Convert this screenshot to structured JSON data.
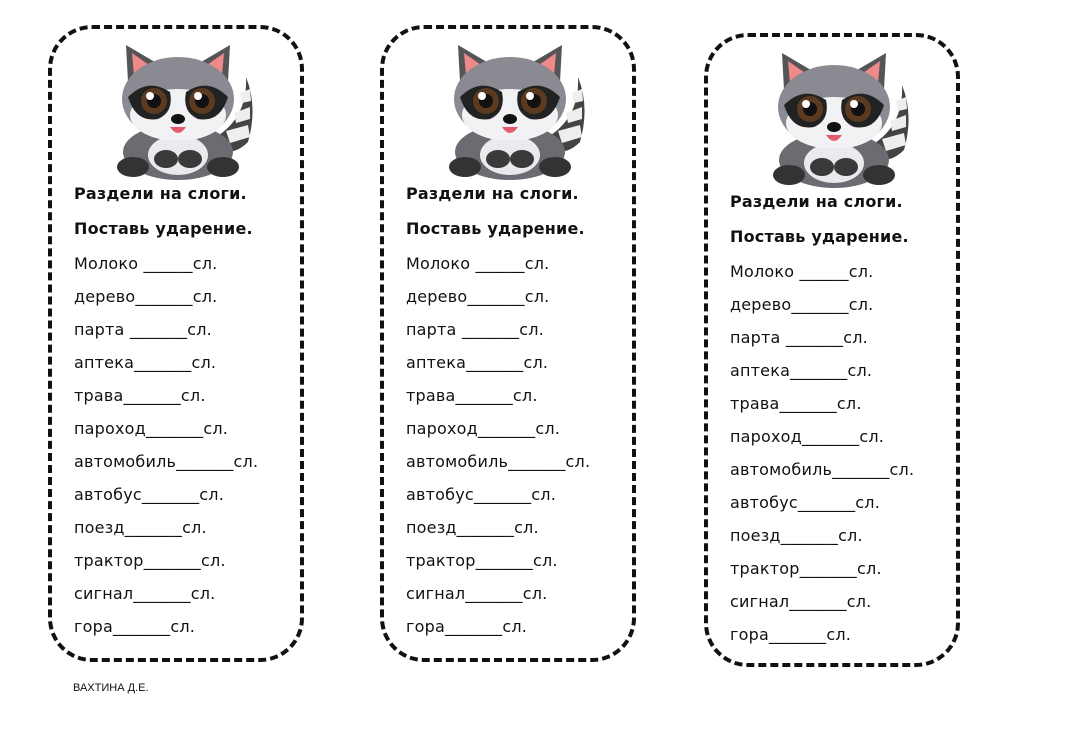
{
  "cards": [
    {
      "title": "Раздели на слоги.",
      "subtitle": "Поставь ударение.",
      "items": [
        "Молоко ______сл.",
        "дерево_______сл.",
        "парта _______сл.",
        "аптека_______сл.",
        "трава_______сл.",
        "пароход_______сл.",
        "автомобиль_______сл.",
        "автобус_______сл.",
        "поезд_______сл.",
        "трактор_______сл.",
        "сигнал_______сл.",
        "гора_______сл."
      ]
    },
    {
      "title": "Раздели на слоги.",
      "subtitle": "Поставь ударение.",
      "items": [
        "Молоко ______сл.",
        "дерево_______сл.",
        "парта _______сл.",
        "аптека_______сл.",
        "трава_______сл.",
        "пароход_______сл.",
        "автомобиль_______сл.",
        "автобус_______сл.",
        "поезд_______сл.",
        "трактор_______сл.",
        "сигнал_______сл.",
        "гора_______сл."
      ]
    },
    {
      "title": "Раздели на слоги.",
      "subtitle": "Поставь ударение.",
      "items": [
        "Молоко ______сл.",
        "дерево_______сл.",
        "парта _______сл.",
        "аптека_______сл.",
        "трава_______сл.",
        "пароход_______сл.",
        "автомобиль_______сл.",
        "автобус_______сл.",
        "поезд_______сл.",
        "трактор_______сл.",
        "сигнал_______сл.",
        "гора_______сл."
      ]
    }
  ],
  "author": "ВАХТИНА Д.Е.",
  "illustration": "raccoon"
}
